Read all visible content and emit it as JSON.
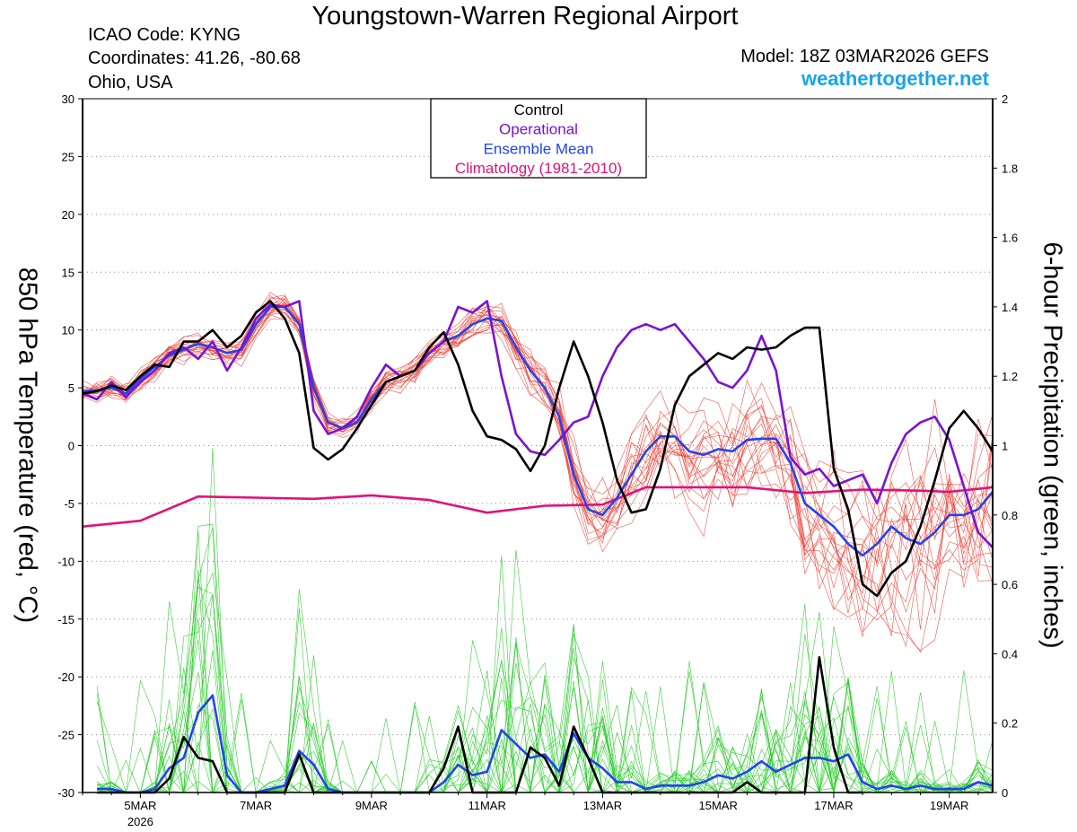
{
  "header": {
    "title": "Youngstown-Warren Regional Airport",
    "icao": "ICAO Code: KYNG",
    "coords": "Coordinates: 41.26, -80.68",
    "location": "Ohio, USA",
    "model": "Model: 18Z 03MAR2026 GEFS",
    "site": "weathertogether.net"
  },
  "colors": {
    "control": "#000000",
    "operational": "#7a12d4",
    "ensemble_mean": "#2244ee",
    "climatology": "#e0127a",
    "members_temp": "#ee3a2e",
    "members_precip": "#22cc22",
    "site": "#1aa3ee"
  },
  "chart_data": {
    "type": "line",
    "title": "Youngstown-Warren Regional Airport",
    "ylabel": "850 hPa Temperature (red, °C)",
    "y2label": "6-hour Precipitation (green, inches)",
    "ylim": [
      -30,
      30
    ],
    "y2lim": [
      0,
      2
    ],
    "xlim": [
      4.0,
      19.75
    ],
    "yticks": [
      30,
      25,
      20,
      15,
      10,
      5,
      0,
      -5,
      -10,
      -15,
      -20,
      -25,
      -30
    ],
    "y2ticks": [
      2,
      1.8,
      1.6,
      1.4,
      1.2,
      1,
      0.8,
      0.6,
      0.4,
      0.2,
      0
    ],
    "xticks": [
      {
        "x": 5,
        "label": "5MAR"
      },
      {
        "x": 7,
        "label": "7MAR"
      },
      {
        "x": 9,
        "label": "9MAR"
      },
      {
        "x": 11,
        "label": "11MAR"
      },
      {
        "x": 13,
        "label": "13MAR"
      },
      {
        "x": 15,
        "label": "15MAR"
      },
      {
        "x": 17,
        "label": "17MAR"
      },
      {
        "x": 19,
        "label": "19MAR"
      }
    ],
    "year_label": "2026",
    "legend": [
      "Control",
      "Operational",
      "Ensemble Mean",
      "Climatology (1981-2010)"
    ],
    "series": [
      {
        "name": "Control",
        "axis": "temp",
        "x": [
          4.0,
          4.25,
          4.5,
          4.75,
          5.0,
          5.25,
          5.5,
          5.75,
          6.0,
          6.25,
          6.5,
          6.75,
          7.0,
          7.25,
          7.5,
          7.75,
          8.0,
          8.25,
          8.5,
          8.75,
          9.0,
          9.25,
          9.5,
          9.75,
          10.0,
          10.25,
          10.5,
          10.75,
          11.0,
          11.25,
          11.5,
          11.75,
          12.0,
          12.25,
          12.5,
          12.75,
          13.0,
          13.25,
          13.5,
          13.75,
          14.0,
          14.25,
          14.5,
          14.75,
          15.0,
          15.25,
          15.5,
          15.75,
          16.0,
          16.25,
          16.5,
          16.75,
          17.0,
          17.25,
          17.5,
          17.75,
          18.0,
          18.25,
          18.5,
          18.75,
          19.0,
          19.25,
          19.5,
          19.75
        ],
        "values": [
          4.5,
          4.7,
          5.2,
          4.8,
          6.0,
          7.0,
          6.8,
          9.0,
          9.0,
          10.0,
          8.5,
          9.5,
          11.5,
          12.5,
          11.0,
          8.0,
          -0.2,
          -1.2,
          -0.3,
          1.5,
          3.5,
          5.5,
          6.0,
          6.5,
          8.5,
          9.8,
          7.0,
          3.0,
          0.8,
          0.5,
          -0.3,
          -2.2,
          0.0,
          5.0,
          9.0,
          6.0,
          2.0,
          -3.0,
          -5.8,
          -5.5,
          -2.0,
          3.5,
          6.0,
          7.0,
          8.0,
          7.5,
          8.5,
          8.3,
          8.5,
          9.5,
          10.2,
          10.2,
          -2.0,
          -5.5,
          -12.0,
          -13.0,
          -11.0,
          -10.0,
          -7.0,
          -3.0,
          1.5,
          3.0,
          1.5,
          -0.5
        ]
      },
      {
        "name": "Operational",
        "axis": "temp",
        "x": [
          4.0,
          4.25,
          4.5,
          4.75,
          5.0,
          5.25,
          5.5,
          5.75,
          6.0,
          6.25,
          6.5,
          6.75,
          7.0,
          7.25,
          7.5,
          7.75,
          8.0,
          8.25,
          8.5,
          8.75,
          9.0,
          9.25,
          9.5,
          9.75,
          10.0,
          10.25,
          10.5,
          10.75,
          11.0,
          11.25,
          11.5,
          11.75,
          12.0,
          12.25,
          12.5,
          12.75,
          13.0,
          13.25,
          13.5,
          13.75,
          14.0,
          14.25,
          14.5,
          14.75,
          15.0,
          15.25,
          15.5,
          15.75,
          16.0,
          16.25,
          16.5,
          16.75,
          17.0,
          17.25,
          17.5,
          17.75,
          18.0,
          18.25,
          18.5,
          18.75,
          19.0,
          19.25,
          19.5,
          19.75
        ],
        "values": [
          4.5,
          4.0,
          5.5,
          4.2,
          5.5,
          6.5,
          8.0,
          8.5,
          7.5,
          9.0,
          6.5,
          8.5,
          11.0,
          12.2,
          12.0,
          12.5,
          3.0,
          1.0,
          1.5,
          2.5,
          5.0,
          7.0,
          6.0,
          6.5,
          8.0,
          9.0,
          12.0,
          11.5,
          12.5,
          6.0,
          1.0,
          -0.5,
          -0.8,
          0.5,
          2.0,
          2.5,
          6.0,
          8.5,
          10.0,
          10.5,
          10.0,
          10.5,
          9.0,
          7.5,
          5.5,
          5.0,
          6.5,
          9.5,
          6.5,
          -1.0,
          -2.5,
          -2.0,
          -3.5,
          -3.0,
          -2.5,
          -5.0,
          -1.5,
          1.0,
          2.0,
          2.5,
          0.5,
          -3.5,
          -7.5,
          -8.8
        ]
      },
      {
        "name": "Ensemble Mean",
        "axis": "temp",
        "x": [
          4.0,
          4.25,
          4.5,
          4.75,
          5.0,
          5.25,
          5.5,
          5.75,
          6.0,
          6.25,
          6.5,
          6.75,
          7.0,
          7.25,
          7.5,
          7.75,
          8.0,
          8.25,
          8.5,
          8.75,
          9.0,
          9.25,
          9.5,
          9.75,
          10.0,
          10.25,
          10.5,
          10.75,
          11.0,
          11.25,
          11.5,
          11.75,
          12.0,
          12.25,
          12.5,
          12.75,
          13.0,
          13.25,
          13.5,
          13.75,
          14.0,
          14.25,
          14.5,
          14.75,
          15.0,
          15.25,
          15.5,
          15.75,
          16.0,
          16.25,
          16.5,
          16.75,
          17.0,
          17.25,
          17.5,
          17.75,
          18.0,
          18.25,
          18.5,
          18.75,
          19.0,
          19.25,
          19.5,
          19.75
        ],
        "values": [
          4.7,
          4.8,
          5.0,
          4.5,
          5.8,
          6.8,
          7.8,
          8.3,
          8.8,
          8.5,
          8.0,
          8.3,
          10.5,
          12.0,
          12.0,
          10.5,
          5.0,
          2.0,
          1.5,
          2.0,
          4.0,
          5.5,
          6.0,
          6.5,
          8.0,
          9.0,
          9.5,
          10.5,
          11.0,
          10.8,
          8.5,
          6.5,
          5.0,
          2.5,
          -2.5,
          -5.5,
          -6.0,
          -4.5,
          -2.5,
          -0.5,
          0.8,
          0.8,
          -0.5,
          -0.8,
          -0.3,
          -0.5,
          0.5,
          0.6,
          0.6,
          -1.5,
          -5.0,
          -6.0,
          -7.0,
          -8.5,
          -9.5,
          -8.5,
          -7.0,
          -8.0,
          -8.5,
          -7.5,
          -6.0,
          -6.0,
          -5.5,
          -4.0
        ]
      },
      {
        "name": "Climatology (1981-2010)",
        "axis": "temp",
        "x": [
          4.0,
          5.0,
          6.0,
          7.0,
          8.0,
          9.0,
          10.0,
          11.0,
          12.0,
          13.0,
          13.75,
          14.5,
          15.5,
          16.5,
          17.5,
          18.5,
          19.0,
          19.75
        ],
        "values": [
          -7.0,
          -6.5,
          -4.4,
          -4.5,
          -4.6,
          -4.3,
          -4.7,
          -5.8,
          -5.2,
          -5.1,
          -3.6,
          -3.6,
          -3.6,
          -4.1,
          -3.8,
          -3.9,
          -4.0,
          -3.6
        ]
      },
      {
        "name": "Control Precipitation",
        "axis": "precip",
        "x": [
          4.25,
          4.5,
          4.75,
          5.0,
          5.25,
          5.5,
          5.75,
          6.0,
          6.25,
          6.5,
          6.75,
          7.0,
          7.25,
          7.5,
          7.75,
          8.0,
          8.25,
          8.5,
          8.75,
          9.0,
          9.25,
          9.5,
          9.75,
          10.0,
          10.25,
          10.5,
          10.75,
          11.0,
          11.25,
          11.5,
          11.75,
          12.0,
          12.25,
          12.5,
          12.75,
          13.0,
          13.25,
          13.5,
          13.75,
          14.0,
          14.25,
          14.5,
          14.75,
          15.0,
          15.25,
          15.5,
          15.75,
          16.0,
          16.25,
          16.5,
          16.75,
          17.0,
          17.25,
          17.5
        ],
        "values": [
          0.0,
          0.0,
          0.0,
          0.0,
          0.0,
          0.04,
          0.16,
          0.1,
          0.09,
          0.0,
          0.0,
          0.0,
          0.0,
          0.0,
          0.11,
          0.0,
          0.0,
          0.0,
          0.0,
          0.0,
          0.0,
          0.0,
          0.0,
          0.0,
          0.07,
          0.19,
          0.0,
          0.0,
          0.0,
          0.0,
          0.13,
          0.1,
          0.02,
          0.19,
          0.1,
          0.0,
          0.0,
          0.0,
          0.0,
          0.0,
          0.0,
          0.0,
          0.0,
          0.0,
          0.0,
          0.03,
          0.0,
          0.0,
          0.0,
          0.0,
          0.39,
          0.13,
          0.0,
          0.0
        ]
      },
      {
        "name": "Ensemble Mean Precipitation",
        "axis": "precip",
        "x": [
          4.25,
          4.5,
          4.75,
          5.0,
          5.25,
          5.5,
          5.75,
          6.0,
          6.25,
          6.5,
          6.75,
          7.0,
          7.25,
          7.5,
          7.75,
          8.0,
          8.25,
          8.5,
          8.75,
          9.0,
          9.25,
          9.5,
          9.75,
          10.0,
          10.25,
          10.5,
          10.75,
          11.0,
          11.25,
          11.5,
          11.75,
          12.0,
          12.25,
          12.5,
          12.75,
          13.0,
          13.25,
          13.5,
          13.75,
          14.0,
          14.25,
          14.5,
          14.75,
          15.0,
          15.25,
          15.5,
          15.75,
          16.0,
          16.25,
          16.5,
          16.75,
          17.0,
          17.25,
          17.5,
          17.75,
          18.0,
          18.25,
          18.5,
          18.75,
          19.0,
          19.25,
          19.5,
          19.75
        ],
        "values": [
          0.01,
          0.01,
          0.0,
          0.0,
          0.01,
          0.07,
          0.1,
          0.23,
          0.28,
          0.05,
          0.0,
          0.0,
          0.01,
          0.02,
          0.12,
          0.08,
          0.01,
          0.0,
          0.0,
          0.0,
          0.0,
          0.0,
          0.0,
          0.0,
          0.03,
          0.08,
          0.05,
          0.06,
          0.18,
          0.14,
          0.1,
          0.11,
          0.06,
          0.17,
          0.1,
          0.07,
          0.03,
          0.03,
          0.01,
          0.02,
          0.02,
          0.02,
          0.03,
          0.05,
          0.04,
          0.06,
          0.09,
          0.06,
          0.08,
          0.1,
          0.1,
          0.09,
          0.11,
          0.03,
          0.01,
          0.02,
          0.01,
          0.02,
          0.01,
          0.01,
          0.01,
          0.03,
          0.02
        ]
      }
    ]
  }
}
